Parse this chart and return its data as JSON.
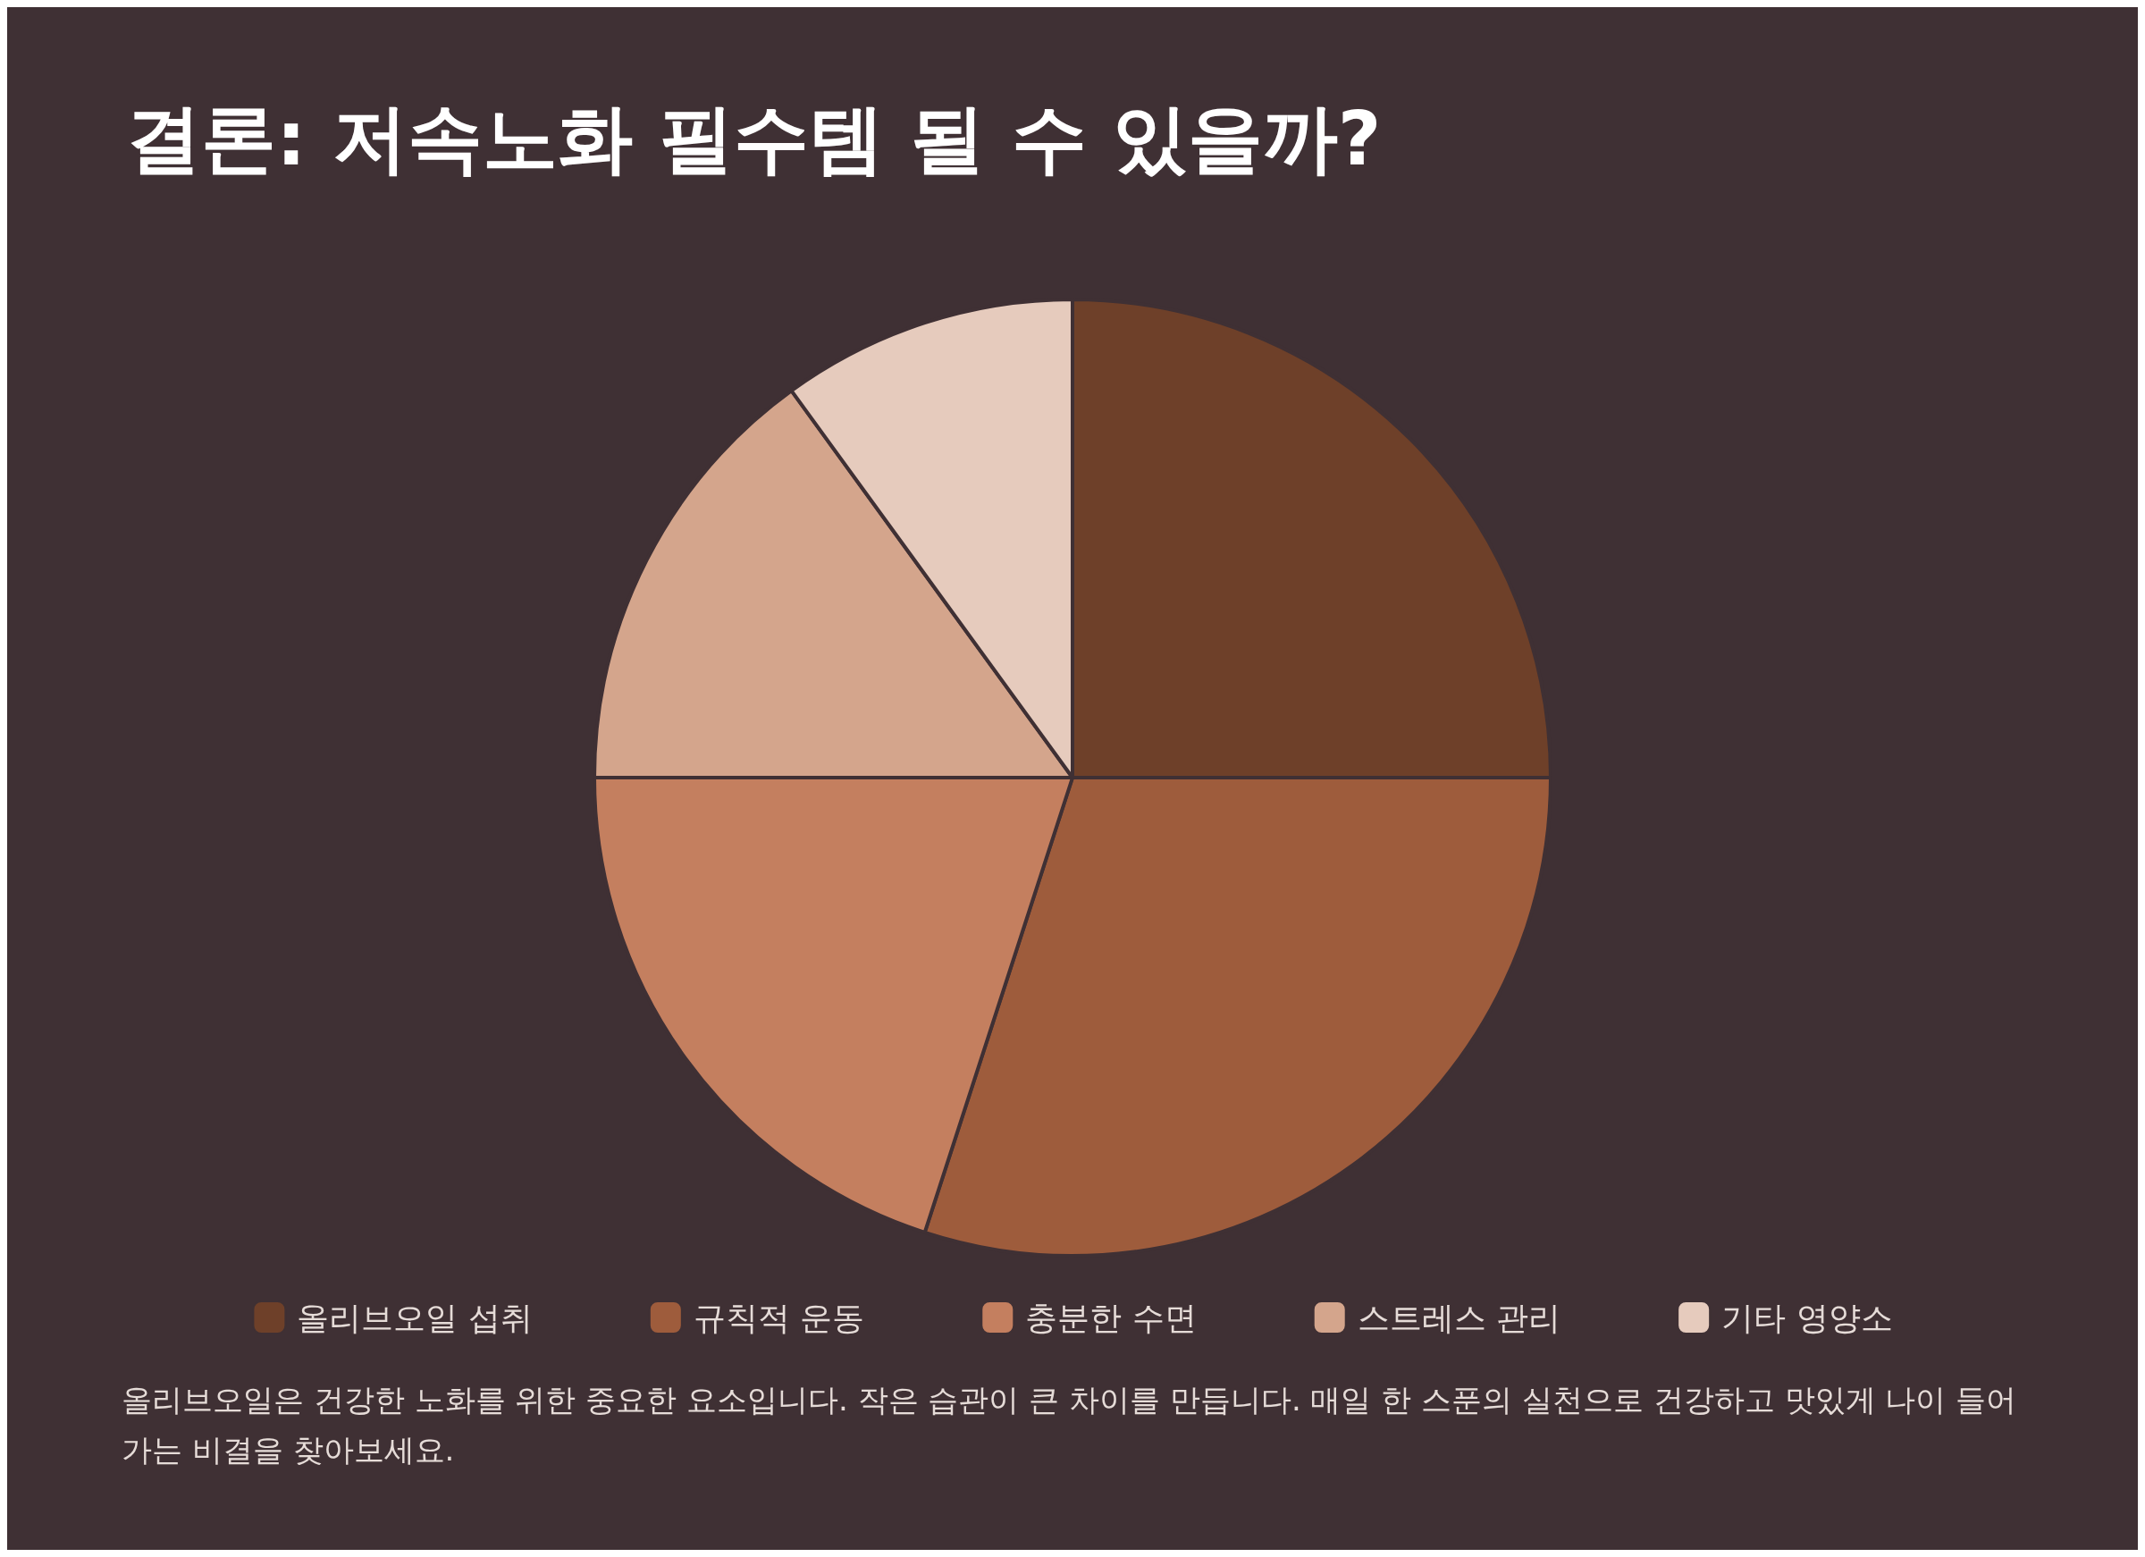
{
  "chart_data": {
    "type": "pie",
    "title": "결론: 저속노화 필수템 될 수 있을까?",
    "categories": [
      "올리브오일 섭취",
      "규칙적 운동",
      "충분한 수면",
      "스트레스 관리",
      "기타 영양소"
    ],
    "values": [
      25,
      30,
      20,
      15,
      10
    ],
    "colors": [
      "#6e4029",
      "#9e5c3c",
      "#c47f5f",
      "#d4a58c",
      "#e6cbbd"
    ],
    "legend": "bottom",
    "annotations": [
      "올리브오일은 건강한 노화를 위한 중요한 요소입니다. 작은 습관이 큰 차이를 만듭니다. 매일 한 스푼의 실천으로 건강하고 맛있게 나이 들어가는 비결을 찾아보세요."
    ]
  }
}
